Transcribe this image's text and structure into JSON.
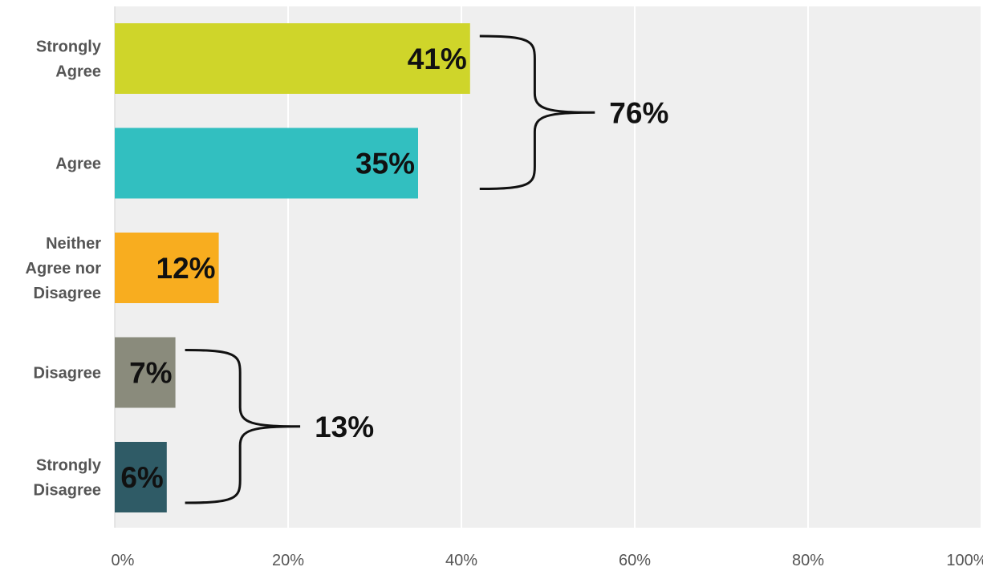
{
  "chart_data": {
    "type": "bar",
    "orientation": "horizontal",
    "categories": [
      [
        "Strongly",
        "Agree"
      ],
      [
        "Agree"
      ],
      [
        "Neither",
        "Agree nor",
        "Disagree"
      ],
      [
        "Disagree"
      ],
      [
        "Strongly",
        "Disagree"
      ]
    ],
    "values": [
      41,
      35,
      12,
      7,
      6
    ],
    "data_labels": [
      "41%",
      "35%",
      "12%",
      "7%",
      "6%"
    ],
    "colors": [
      "#cfd52a",
      "#32bfc0",
      "#f8ad1f",
      "#8a8b7c",
      "#2f5b66"
    ],
    "xlim": [
      0,
      100
    ],
    "xticks": [
      0,
      20,
      40,
      60,
      80,
      100
    ],
    "xtick_labels": [
      "0%",
      "20%",
      "40%",
      "60%",
      "80%",
      "100%"
    ],
    "grid": true,
    "legend": false,
    "plot_background": "#efefef",
    "grid_color": "#ffffff",
    "groups": [
      {
        "label": "76%",
        "categories": [
          0,
          1
        ]
      },
      {
        "label": "13%",
        "categories": [
          3,
          4
        ]
      }
    ]
  }
}
